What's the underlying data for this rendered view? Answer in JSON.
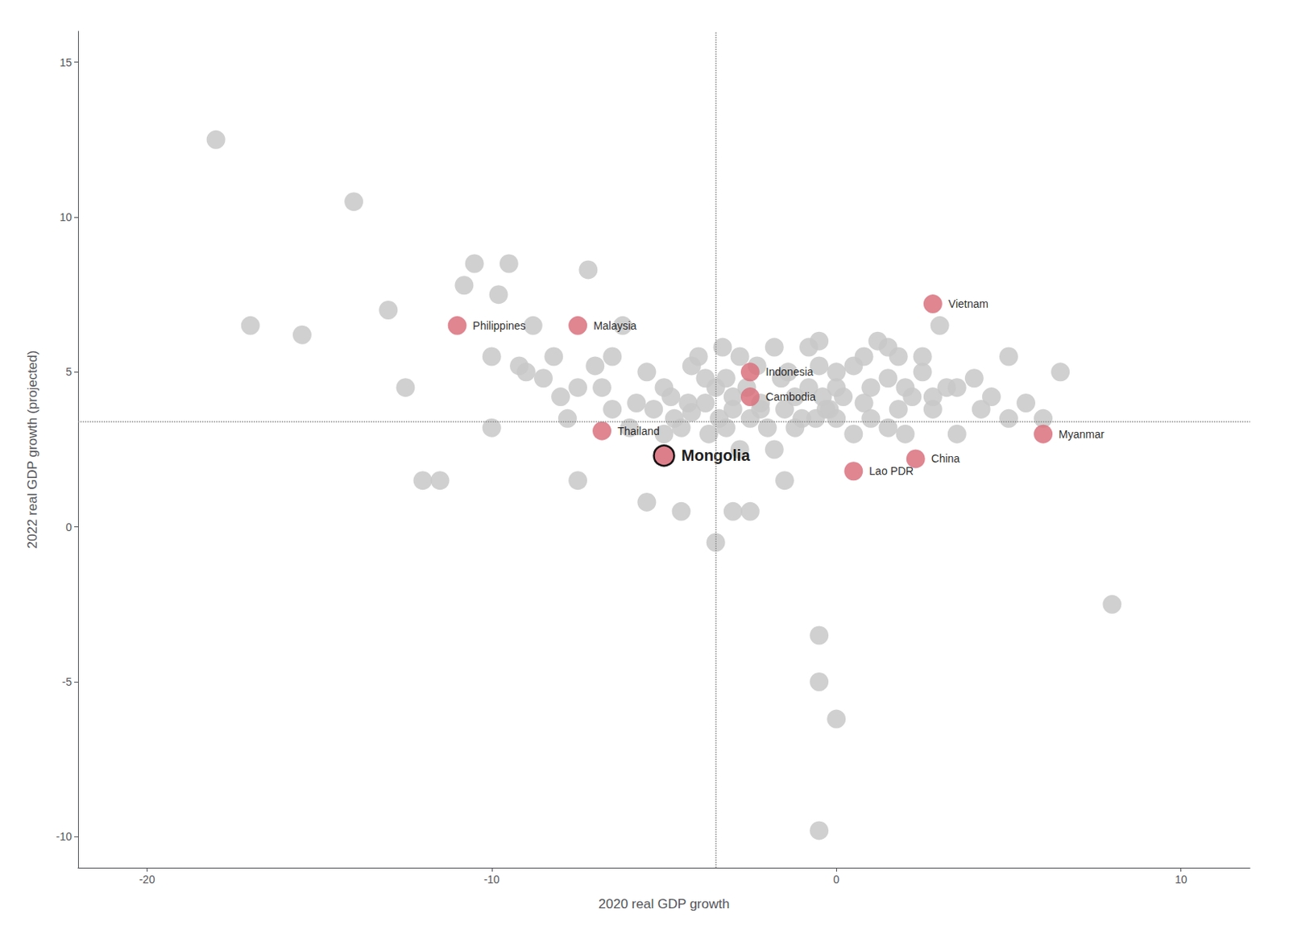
{
  "chart_data": {
    "type": "scatter",
    "xlabel": "2020 real GDP growth",
    "ylabel": "2022 real GDP growth (projected)",
    "xlim": [
      -22,
      12
    ],
    "ylim": [
      -11,
      16
    ],
    "xticks": [
      -20,
      -10,
      0,
      10
    ],
    "yticks": [
      -10,
      -5,
      0,
      5,
      10,
      15
    ],
    "grid": false,
    "hline": 3.4,
    "vline": -3.5,
    "series": [
      {
        "color": "#c8c8c8",
        "values": [
          [
            -18.0,
            12.5
          ],
          [
            -17.0,
            6.5
          ],
          [
            -15.5,
            6.2
          ],
          [
            -14.0,
            10.5
          ],
          [
            -13.0,
            7.0
          ],
          [
            -12.5,
            4.5
          ],
          [
            -12.0,
            1.5
          ],
          [
            -10.8,
            7.8
          ],
          [
            -10.5,
            8.5
          ],
          [
            -10.0,
            3.2
          ],
          [
            -10.0,
            5.5
          ],
          [
            -9.8,
            7.5
          ],
          [
            -9.5,
            8.5
          ],
          [
            -9.2,
            5.2
          ],
          [
            -9.0,
            5.0
          ],
          [
            -8.8,
            6.5
          ],
          [
            -8.5,
            4.8
          ],
          [
            -8.2,
            5.5
          ],
          [
            -8.0,
            4.2
          ],
          [
            -7.8,
            3.5
          ],
          [
            -7.5,
            4.5
          ],
          [
            -7.2,
            8.3
          ],
          [
            -7.0,
            5.2
          ],
          [
            -6.8,
            4.5
          ],
          [
            -6.5,
            3.8
          ],
          [
            -6.5,
            5.5
          ],
          [
            -6.2,
            6.5
          ],
          [
            -6.0,
            3.2
          ],
          [
            -5.8,
            4.0
          ],
          [
            -5.5,
            5.0
          ],
          [
            -5.3,
            3.8
          ],
          [
            -5.0,
            4.5
          ],
          [
            -5.0,
            3.0
          ],
          [
            -4.8,
            4.2
          ],
          [
            -4.7,
            3.5
          ],
          [
            -4.5,
            3.2
          ],
          [
            -4.3,
            4.0
          ],
          [
            -4.2,
            3.7
          ],
          [
            -4.0,
            5.5
          ],
          [
            -3.8,
            4.0
          ],
          [
            -3.7,
            3.0
          ],
          [
            -3.5,
            4.5
          ],
          [
            -3.4,
            3.5
          ],
          [
            -3.2,
            4.8
          ],
          [
            -3.0,
            4.2
          ],
          [
            -3.0,
            3.8
          ],
          [
            -2.8,
            2.5
          ],
          [
            -2.6,
            4.5
          ],
          [
            -2.5,
            3.5
          ],
          [
            -2.3,
            5.2
          ],
          [
            -2.2,
            4.0
          ],
          [
            -2.0,
            3.2
          ],
          [
            -1.8,
            2.5
          ],
          [
            -1.6,
            4.8
          ],
          [
            -1.5,
            3.8
          ],
          [
            -1.4,
            5.0
          ],
          [
            -1.2,
            4.2
          ],
          [
            -1.0,
            3.5
          ],
          [
            -0.8,
            4.5
          ],
          [
            -0.6,
            3.5
          ],
          [
            -0.5,
            5.2
          ],
          [
            -0.5,
            6.0
          ],
          [
            -0.4,
            4.2
          ],
          [
            -0.3,
            3.8
          ],
          [
            0.0,
            4.5
          ],
          [
            0.0,
            3.5
          ],
          [
            0.0,
            5.0
          ],
          [
            0.2,
            4.2
          ],
          [
            0.5,
            3.0
          ],
          [
            0.8,
            5.5
          ],
          [
            1.0,
            4.5
          ],
          [
            1.0,
            3.5
          ],
          [
            1.2,
            6.0
          ],
          [
            1.5,
            4.8
          ],
          [
            1.5,
            3.2
          ],
          [
            1.8,
            5.5
          ],
          [
            2.0,
            4.5
          ],
          [
            2.0,
            3.0
          ],
          [
            2.2,
            4.2
          ],
          [
            2.5,
            5.0
          ],
          [
            2.8,
            3.8
          ],
          [
            3.0,
            6.5
          ],
          [
            3.2,
            4.5
          ],
          [
            3.5,
            3.0
          ],
          [
            4.0,
            4.8
          ],
          [
            4.5,
            4.2
          ],
          [
            5.0,
            5.5
          ],
          [
            5.5,
            4.0
          ],
          [
            6.0,
            3.5
          ],
          [
            6.5,
            5.0
          ],
          [
            8.0,
            -2.5
          ],
          [
            -7.5,
            1.5
          ],
          [
            -11.5,
            1.5
          ],
          [
            -3.5,
            -0.5
          ],
          [
            -3.0,
            0.5
          ],
          [
            -0.5,
            -3.5
          ],
          [
            -0.5,
            -5.0
          ],
          [
            -0.5,
            -9.8
          ],
          [
            0.0,
            -6.2
          ],
          [
            -4.5,
            0.5
          ],
          [
            -5.5,
            0.8
          ],
          [
            -2.5,
            0.5
          ],
          [
            -1.5,
            1.5
          ],
          [
            -3.8,
            4.8
          ],
          [
            -4.2,
            5.2
          ],
          [
            -3.3,
            5.8
          ],
          [
            -2.8,
            5.5
          ],
          [
            -1.8,
            5.8
          ],
          [
            -0.8,
            5.8
          ],
          [
            0.5,
            5.2
          ],
          [
            1.5,
            5.8
          ],
          [
            2.5,
            5.5
          ],
          [
            -3.2,
            3.2
          ],
          [
            -2.2,
            3.8
          ],
          [
            -1.2,
            3.2
          ],
          [
            -0.2,
            3.8
          ],
          [
            0.8,
            4.0
          ],
          [
            1.8,
            3.8
          ],
          [
            2.8,
            4.2
          ],
          [
            3.5,
            4.5
          ],
          [
            4.2,
            3.8
          ],
          [
            5.0,
            3.5
          ]
        ]
      },
      {
        "color": "#d9717e",
        "values": [
          [
            -11.0,
            6.5
          ],
          [
            -7.5,
            6.5
          ],
          [
            -6.8,
            3.1
          ],
          [
            -2.5,
            5.0
          ],
          [
            -2.5,
            4.2
          ],
          [
            0.5,
            1.8
          ],
          [
            2.3,
            2.2
          ],
          [
            2.8,
            7.2
          ],
          [
            6.0,
            3.0
          ]
        ],
        "labels": [
          "Philippines",
          "Malaysia",
          "Thailand",
          "Indonesia",
          "Cambodia",
          "Lao PDR",
          "China",
          "Vietnam",
          "Myanmar"
        ]
      },
      {
        "color": "#d9717e",
        "marker": "circle_outlined",
        "values": [
          [
            -5.0,
            2.3
          ]
        ],
        "labels": [
          "Mongolia"
        ]
      }
    ]
  }
}
